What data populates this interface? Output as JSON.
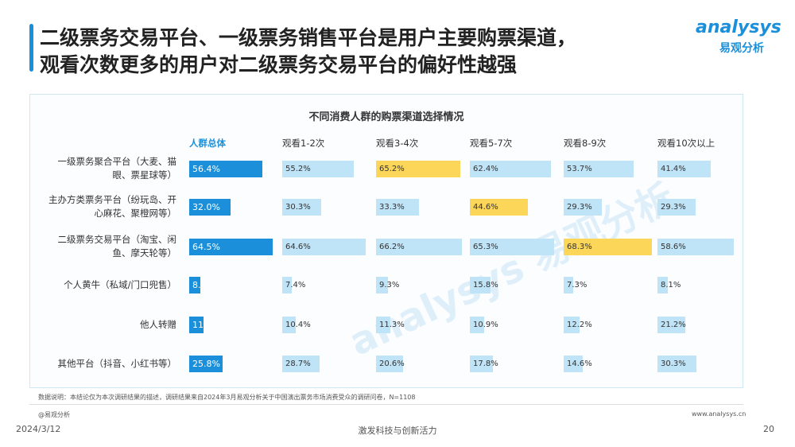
{
  "header": {
    "title_lines": [
      "二级票务交易平台、一级票务销售平台是用户主要购票渠道，",
      "观看次数更多的用户对二级票务交易平台的偏好性越强"
    ],
    "logo": "analysys",
    "logo_sub": "易观分析"
  },
  "chart_data": {
    "type": "bar",
    "title": "不同消费人群的购票渠道选择情况",
    "categories": [
      "一级票务聚合平台（大麦、猫眼、票星球等）",
      "主办方类票务平台（纷玩岛、开心麻花、聚橙网等）",
      "二级票务交易平台（淘宝、闲鱼、摩天轮等）",
      "个人黄牛（私域/门口兜售）",
      "他人转赠",
      "其他平台（抖音、小红书等）"
    ],
    "series": [
      {
        "name": "人群总体",
        "color": "#1b8fd9",
        "values": [
          56.4,
          32.0,
          64.5,
          8.5,
          11.0,
          25.8
        ],
        "value_labels": [
          "56.4%",
          "32.0%",
          "64.5%",
          "8.",
          "11",
          "25.8%"
        ]
      },
      {
        "name": "观看1-2次",
        "color": "#bfe3f7",
        "colors": [
          "#bfe3f7",
          "#bfe3f7",
          "#bfe3f7",
          "#bfe3f7",
          "#bfe3f7",
          "#bfe3f7"
        ],
        "values": [
          55.2,
          30.3,
          64.6,
          7.4,
          10.4,
          28.7
        ],
        "value_labels": [
          "55.2%",
          "30.3%",
          "64.6%",
          "7.4%",
          "10.4%",
          "28.7%"
        ]
      },
      {
        "name": "观看3-4次",
        "color": "#bfe3f7",
        "colors": [
          "#fcd658",
          "#bfe3f7",
          "#bfe3f7",
          "#bfe3f7",
          "#bfe3f7",
          "#bfe3f7"
        ],
        "values": [
          65.2,
          33.3,
          66.2,
          9.3,
          11.3,
          20.6
        ],
        "value_labels": [
          "65.2%",
          "33.3%",
          "66.2%",
          "9.3%",
          "11.3%",
          "20.6%"
        ]
      },
      {
        "name": "观看5-7次",
        "color": "#bfe3f7",
        "colors": [
          "#bfe3f7",
          "#fcd658",
          "#bfe3f7",
          "#bfe3f7",
          "#bfe3f7",
          "#bfe3f7"
        ],
        "values": [
          62.4,
          44.6,
          65.3,
          15.8,
          10.9,
          17.8
        ],
        "value_labels": [
          "62.4%",
          "44.6%",
          "65.3%",
          "15.8%",
          "10.9%",
          "17.8%"
        ]
      },
      {
        "name": "观看8-9次",
        "color": "#bfe3f7",
        "colors": [
          "#bfe3f7",
          "#bfe3f7",
          "#fcd658",
          "#bfe3f7",
          "#bfe3f7",
          "#bfe3f7"
        ],
        "values": [
          53.7,
          29.3,
          68.3,
          7.3,
          12.2,
          14.6
        ],
        "value_labels": [
          "53.7%",
          "29.3%",
          "68.3%",
          "7.3%",
          "12.2%",
          "14.6%"
        ]
      },
      {
        "name": "观看10次以上",
        "color": "#bfe3f7",
        "colors": [
          "#bfe3f7",
          "#bfe3f7",
          "#bfe3f7",
          "#bfe3f7",
          "#bfe3f7",
          "#bfe3f7"
        ],
        "values": [
          41.4,
          29.3,
          58.6,
          8.1,
          21.2,
          30.3
        ],
        "value_labels": [
          "41.4%",
          "29.3%",
          "58.6%",
          "8.1%",
          "21.2%",
          "30.3%"
        ]
      }
    ],
    "note": "数据说明：本结论仅为本次调研结果的描述，调研结果来自2024年3月易观分析关于中国演出票务市场消费受众的调研问卷，N=1108",
    "watermark": "analysys 易观分析"
  },
  "footer": {
    "source": "@易观分析",
    "url": "www.analysys.cn",
    "date": "2024/3/12",
    "slogan": "激发科技与创新活力",
    "page": "20"
  }
}
